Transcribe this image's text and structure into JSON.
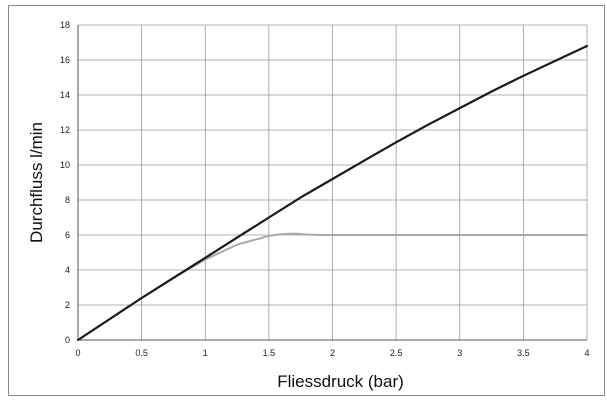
{
  "chart_data": {
    "type": "line",
    "title": "",
    "xlabel": "Fliessdruck (bar)",
    "ylabel": "Durchfluss l/min",
    "xlim": [
      0,
      4
    ],
    "ylim": [
      0,
      18
    ],
    "xticks": [
      0,
      0.5,
      1,
      1.5,
      2,
      2.5,
      3,
      3.5,
      4
    ],
    "yticks": [
      0,
      2,
      4,
      6,
      8,
      10,
      12,
      14,
      16,
      18
    ],
    "xtick_labels": [
      "0",
      "0.5",
      "1",
      "1.5",
      "2",
      "2.5",
      "3",
      "3.5",
      "4"
    ],
    "ytick_labels": [
      "0",
      "2",
      "4",
      "6",
      "8",
      "10",
      "12",
      "14",
      "16",
      "18"
    ],
    "grid": true,
    "legend": "none",
    "series": [
      {
        "color": "#aaaaaa",
        "stroke_width": 2,
        "x": [
          0,
          0.25,
          0.5,
          0.75,
          1,
          1.25,
          1.5,
          1.6,
          1.7,
          1.8,
          1.9,
          2,
          2.5,
          3,
          3.5,
          4
        ],
        "y": [
          0,
          1.2,
          2.4,
          3.55,
          4.6,
          5.45,
          5.95,
          6.05,
          6.08,
          6.03,
          6.0,
          6.0,
          6.0,
          6.0,
          6.0,
          6.0
        ]
      },
      {
        "color": "#1a1a1a",
        "stroke_width": 2.2,
        "x": [
          0,
          0.25,
          0.5,
          0.75,
          1,
          1.25,
          1.5,
          1.75,
          2,
          2.25,
          2.5,
          2.75,
          3,
          3.25,
          3.5,
          3.75,
          4
        ],
        "y": [
          0,
          1.2,
          2.4,
          3.55,
          4.7,
          5.85,
          7.0,
          8.15,
          9.2,
          10.25,
          11.3,
          12.3,
          13.25,
          14.2,
          15.1,
          15.95,
          16.8
        ]
      }
    ]
  }
}
